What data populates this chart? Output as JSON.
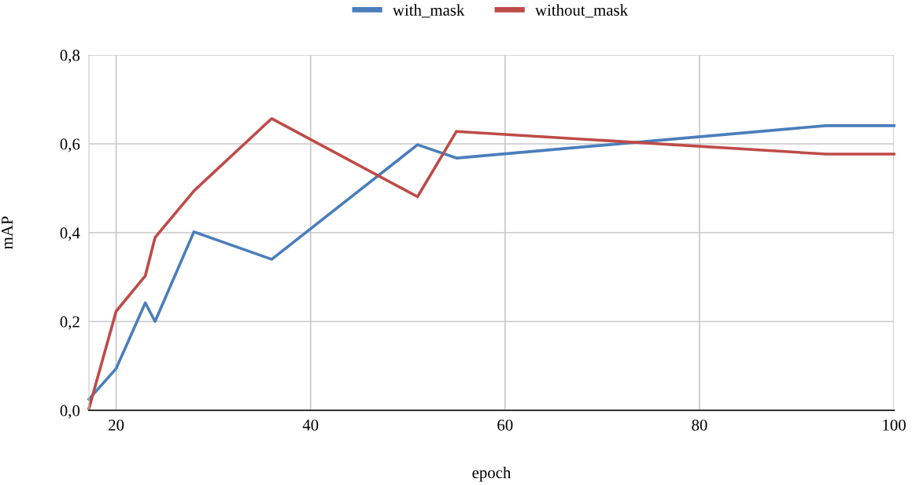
{
  "chart_data": {
    "type": "line",
    "xlabel": "epoch",
    "ylabel": "mAP",
    "series": [
      {
        "name": "with_mask",
        "color": "#4a7ebb",
        "x": [
          17.2,
          20,
          23,
          24,
          28,
          36,
          51,
          55,
          93,
          100
        ],
        "values": [
          0.025,
          0.094,
          0.242,
          0.2,
          0.402,
          0.34,
          0.598,
          0.568,
          0.641,
          0.641
        ]
      },
      {
        "name": "without_mask",
        "color": "#be4b48",
        "x": [
          17.2,
          20,
          23,
          24,
          28,
          36,
          51,
          55,
          93,
          100
        ],
        "values": [
          0.004,
          0.223,
          0.303,
          0.389,
          0.494,
          0.657,
          0.481,
          0.628,
          0.577,
          0.577
        ]
      }
    ],
    "xlim": [
      17.2,
      100
    ],
    "xticks": [
      20,
      40,
      60,
      80,
      100
    ],
    "ylim": [
      0,
      0.8
    ],
    "yticks": [
      {
        "value": 0,
        "label": "0,0"
      },
      {
        "value": 0.2,
        "label": "0,2"
      },
      {
        "value": 0.4,
        "label": "0,4"
      },
      {
        "value": 0.6,
        "label": "0,6"
      },
      {
        "value": 0.8,
        "label": "0,8"
      }
    ],
    "grid": true,
    "legend": "top",
    "marker": "none",
    "line_style": "solid"
  }
}
